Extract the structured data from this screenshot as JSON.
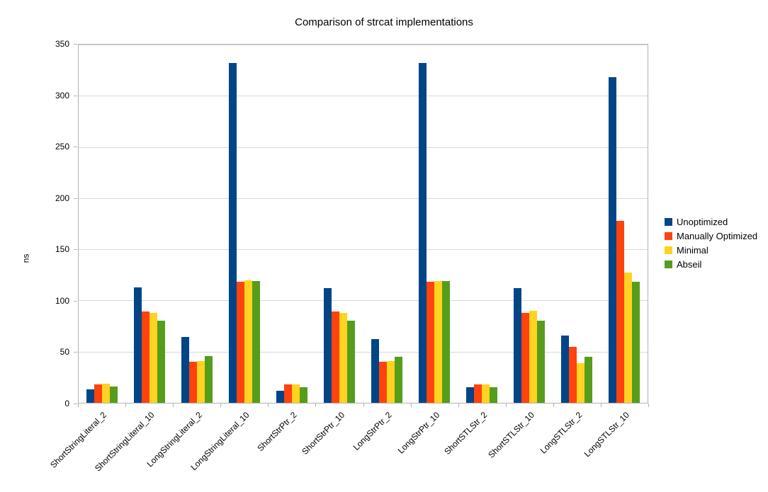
{
  "chart_data": {
    "type": "bar",
    "title": "Comparison of strcat implementations",
    "xlabel": "",
    "ylabel": "ns",
    "ylim": [
      0,
      350
    ],
    "ytick_step": 50,
    "grid": true,
    "legend_position": "right",
    "categories": [
      "ShortStringLiteral_2",
      "ShortStringLiteral_10",
      "LongStringLiteral_2",
      "LongStringLiteral_10",
      "ShortStrPtr_2",
      "ShortStrPtr_10",
      "LongStrPtr_2",
      "LongStrPtr_10",
      "ShortSTLStr_2",
      "ShortSTLStr_10",
      "LongSTLStr_2",
      "LongSTLStr_10"
    ],
    "series": [
      {
        "name": "Unoptimized",
        "color": "#004586",
        "values": [
          13,
          113,
          64,
          332,
          12,
          112,
          62,
          332,
          15,
          112,
          66,
          318
        ]
      },
      {
        "name": "Manually Optimized",
        "color": "#ff420e",
        "values": [
          18,
          89,
          40,
          118,
          18,
          89,
          40,
          118,
          18,
          88,
          55,
          178
        ]
      },
      {
        "name": "Minimal",
        "color": "#ffd320",
        "values": [
          19,
          88,
          41,
          120,
          18,
          88,
          41,
          119,
          18,
          90,
          39,
          127
        ]
      },
      {
        "name": "Abseil",
        "color": "#579d1c",
        "values": [
          16,
          80,
          46,
          119,
          15,
          80,
          45,
          119,
          15,
          80,
          45,
          118
        ]
      }
    ]
  }
}
